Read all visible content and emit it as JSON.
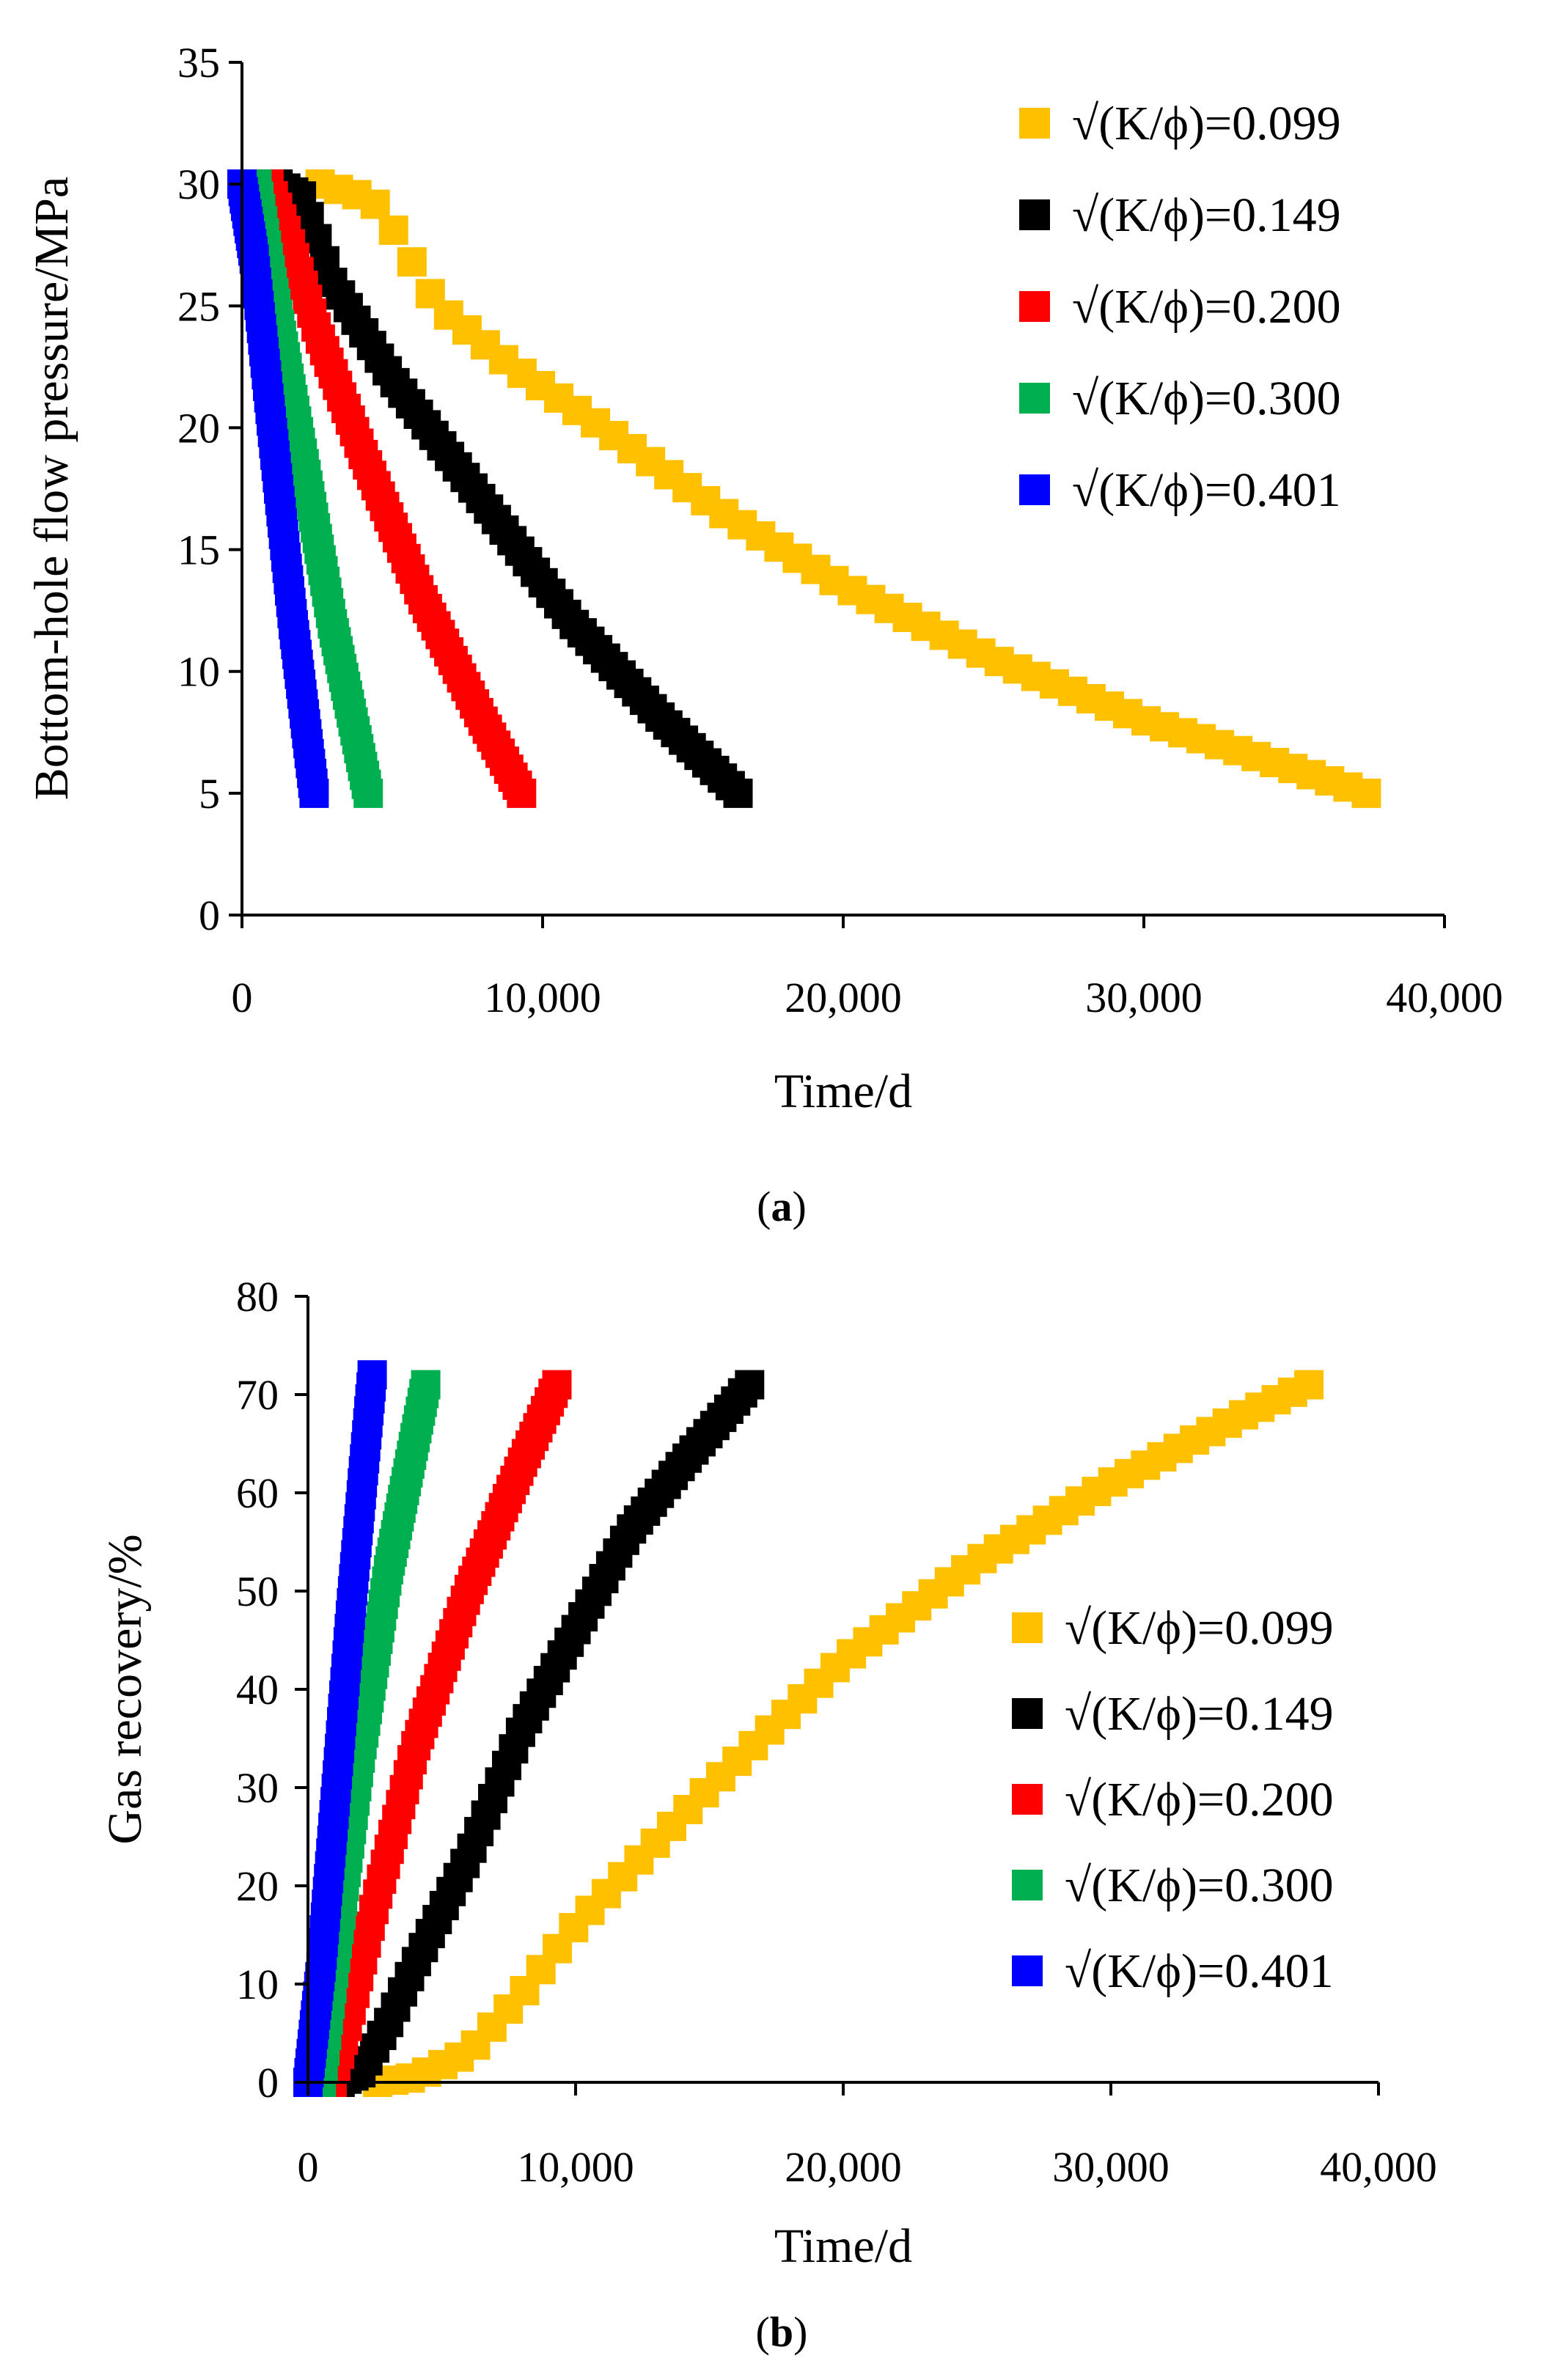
{
  "chart_data": [
    {
      "type": "scatter",
      "panel": "a",
      "caption_letter": "a",
      "xlabel": "Time/d",
      "ylabel": "Bottom-hole flow pressure/MPa",
      "xlim": [
        0,
        40000
      ],
      "ylim": [
        0,
        35
      ],
      "x_ticks": [
        0,
        10000,
        20000,
        30000,
        40000
      ],
      "x_tick_labels": [
        "0",
        "10,000",
        "20,000",
        "30,000",
        "40,000"
      ],
      "y_ticks": [
        0,
        5,
        10,
        15,
        20,
        25,
        30,
        35
      ],
      "y_tick_labels": [
        "0",
        "5",
        "10",
        "15",
        "20",
        "25",
        "30",
        "35"
      ],
      "grid": false,
      "legend_position": "top-right",
      "series": [
        {
          "name": "√(K/ϕ)=0.099",
          "color": "#FFC000",
          "x_start": 2600,
          "x_end": 37400,
          "points": 58,
          "curve": [
            [
              2600,
              30
            ],
            [
              4300,
              29.4
            ],
            [
              5000,
              28.2
            ],
            [
              6500,
              25
            ],
            [
              9000,
              22.5
            ],
            [
              12000,
              20
            ],
            [
              16000,
              16.5
            ],
            [
              20000,
              13.5
            ],
            [
              25000,
              10.5
            ],
            [
              30000,
              8
            ],
            [
              35000,
              6
            ],
            [
              37400,
              5
            ]
          ]
        },
        {
          "name": "√(K/ϕ)=0.149",
          "color": "#000000",
          "x_start": 1200,
          "x_end": 16500,
          "points": 60,
          "curve": [
            [
              1200,
              30
            ],
            [
              2000,
              29.5
            ],
            [
              3000,
              26
            ],
            [
              5000,
              22
            ],
            [
              8000,
              17
            ],
            [
              11000,
              12
            ],
            [
              14000,
              8
            ],
            [
              16500,
              5
            ]
          ]
        },
        {
          "name": "√(K/ϕ)=0.200",
          "color": "#FF0000",
          "x_start": 900,
          "x_end": 9300,
          "points": 60,
          "curve": [
            [
              900,
              30
            ],
            [
              1500,
              28
            ],
            [
              2500,
              24
            ],
            [
              4000,
              19
            ],
            [
              6000,
              13
            ],
            [
              8000,
              8
            ],
            [
              9300,
              5
            ]
          ]
        },
        {
          "name": "√(K/ϕ)=0.300",
          "color": "#00B050",
          "x_start": 500,
          "x_end": 4200,
          "points": 60,
          "curve": [
            [
              500,
              30
            ],
            [
              1000,
              26
            ],
            [
              2000,
              19
            ],
            [
              3000,
              12
            ],
            [
              4200,
              5
            ]
          ]
        },
        {
          "name": "√(K/ϕ)=0.401",
          "color": "#0000FF",
          "x_start": 0,
          "x_end": 2400,
          "points": 60,
          "curve": [
            [
              0,
              30
            ],
            [
              400,
              27
            ],
            [
              1000,
              20
            ],
            [
              1700,
              12
            ],
            [
              2400,
              5
            ]
          ]
        }
      ]
    },
    {
      "type": "scatter",
      "panel": "b",
      "caption_letter": "b",
      "xlabel": "Time/d",
      "ylabel": "Gas recovery/%",
      "xlim": [
        0,
        40000
      ],
      "ylim": [
        0,
        80
      ],
      "x_ticks": [
        0,
        10000,
        20000,
        30000,
        40000
      ],
      "x_tick_labels": [
        "0",
        "10,000",
        "20,000",
        "30,000",
        "40,000"
      ],
      "y_ticks": [
        0,
        10,
        20,
        30,
        40,
        50,
        60,
        70,
        80
      ],
      "y_tick_labels": [
        "0",
        "10",
        "20",
        "30",
        "40",
        "50",
        "60",
        "70",
        "80"
      ],
      "grid": false,
      "legend_position": "right",
      "series": [
        {
          "name": "√(K/ϕ)=0.099",
          "color": "#FFC000",
          "x_start": 2600,
          "x_end": 37400,
          "points": 58,
          "curve": [
            [
              2600,
              0
            ],
            [
              4000,
              0.5
            ],
            [
              6000,
              3
            ],
            [
              8000,
              9
            ],
            [
              10000,
              16
            ],
            [
              15000,
              30
            ],
            [
              20000,
              43
            ],
            [
              25000,
              53
            ],
            [
              30000,
              61
            ],
            [
              35000,
              68
            ],
            [
              37400,
              71
            ]
          ]
        },
        {
          "name": "√(K/ϕ)=0.149",
          "color": "#000000",
          "x_start": 1200,
          "x_end": 16500,
          "points": 60,
          "curve": [
            [
              1200,
              0
            ],
            [
              2000,
              1
            ],
            [
              3000,
              6
            ],
            [
              4000,
              12
            ],
            [
              6000,
              23
            ],
            [
              8000,
              36
            ],
            [
              10000,
              46
            ],
            [
              12000,
              56
            ],
            [
              14000,
              63
            ],
            [
              16500,
              71
            ]
          ]
        },
        {
          "name": "√(K/ϕ)=0.200",
          "color": "#FF0000",
          "x_start": 900,
          "x_end": 9300,
          "points": 60,
          "curve": [
            [
              900,
              0
            ],
            [
              1500,
              6
            ],
            [
              2500,
              18
            ],
            [
              4000,
              34
            ],
            [
              6000,
              50
            ],
            [
              8000,
              63
            ],
            [
              9300,
              71
            ]
          ]
        },
        {
          "name": "√(K/ϕ)=0.300",
          "color": "#00B050",
          "x_start": 500,
          "x_end": 4400,
          "points": 60,
          "curve": [
            [
              500,
              0
            ],
            [
              1000,
              12
            ],
            [
              2000,
              34
            ],
            [
              3000,
              52
            ],
            [
              4400,
              71
            ]
          ]
        },
        {
          "name": "√(K/ϕ)=0.401",
          "color": "#0000FF",
          "x_start": 0,
          "x_end": 2400,
          "points": 60,
          "curve": [
            [
              0,
              0
            ],
            [
              500,
              12
            ],
            [
              1000,
              28
            ],
            [
              1600,
              48
            ],
            [
              2400,
              72
            ]
          ]
        }
      ]
    }
  ]
}
